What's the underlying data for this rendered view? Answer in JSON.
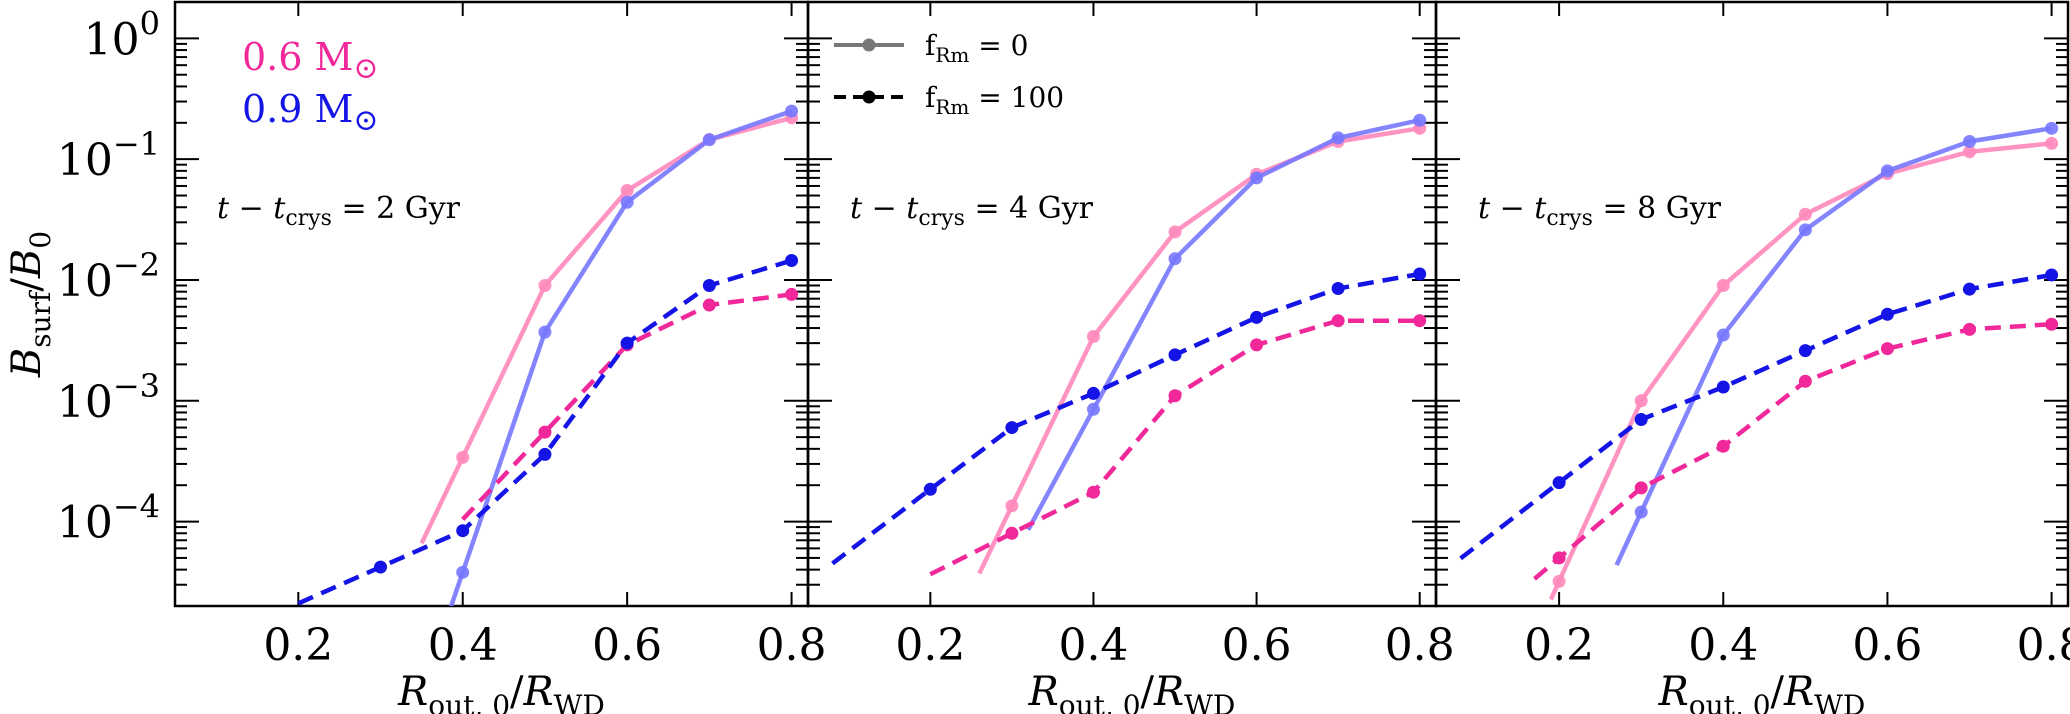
{
  "chart_data": {
    "type": "line",
    "y_scale": "log",
    "xlim": [
      0.05,
      0.82
    ],
    "ylim": [
      2e-05,
      2.0
    ],
    "xticks": [
      0.2,
      0.4,
      0.6,
      0.8
    ],
    "xtick_labels": [
      "0.2",
      "0.4",
      "0.6",
      "0.8"
    ],
    "yticks": [
      0.0001,
      0.001,
      0.01,
      0.1,
      1.0
    ],
    "ytick_labels": [
      {
        "base": "10",
        "exp": "−4"
      },
      {
        "base": "10",
        "exp": "−3"
      },
      {
        "base": "10",
        "exp": "−2"
      },
      {
        "base": "10",
        "exp": "−1"
      },
      {
        "base": "10",
        "exp": "0"
      }
    ],
    "xlabel": {
      "main": "R",
      "sub1": "out, 0",
      "slash": "/",
      "main2": "R",
      "sub2": "WD"
    },
    "ylabel": {
      "main": "B",
      "sub1": "surf",
      "slash": "/",
      "main2": "B",
      "sub2": "0"
    },
    "mass_legend": [
      {
        "label": "0.6 M",
        "symbol": "⊙",
        "color": "#f0289a"
      },
      {
        "label": "0.9 M",
        "symbol": "⊙",
        "color": "#1414e6"
      }
    ],
    "style_legend": [
      {
        "label": "f",
        "sub": "Rm",
        "eq": " = 0",
        "style": "solid"
      },
      {
        "label": "f",
        "sub": "Rm",
        "eq": " = 100",
        "style": "dashed"
      }
    ],
    "panels": [
      {
        "annotation": {
          "t": "t",
          "minus": " − ",
          "t2": "t",
          "sub": "crys",
          "rest": " = 2 Gyr"
        },
        "series": [
          {
            "name": "0.6 M⊙ fRm=0",
            "mass": 0.6,
            "fRm": 0,
            "color": "#ff88bb",
            "x": [
              0.4,
              0.5,
              0.6,
              0.7,
              0.8
            ],
            "y": [
              0.00034,
              0.009,
              0.055,
              0.145,
              0.22
            ],
            "extrap_to": 0.35
          },
          {
            "name": "0.9 M⊙ fRm=0",
            "mass": 0.9,
            "fRm": 0,
            "color": "#7777ff",
            "x": [
              0.4,
              0.5,
              0.6,
              0.7,
              0.8
            ],
            "y": [
              3.8e-05,
              0.0037,
              0.044,
              0.145,
              0.25
            ],
            "extrap_to": 0.38
          },
          {
            "name": "0.6 M⊙ fRm=100",
            "mass": 0.6,
            "fRm": 100,
            "color": "#f0289a",
            "x": [
              0.5,
              0.6,
              0.7,
              0.8
            ],
            "y": [
              0.00055,
              0.0029,
              0.0062,
              0.0076
            ],
            "extrap_to": 0.4
          },
          {
            "name": "0.9 M⊙ fRm=100",
            "mass": 0.9,
            "fRm": 100,
            "color": "#1414e6",
            "x": [
              0.3,
              0.4,
              0.5,
              0.6,
              0.7,
              0.8
            ],
            "y": [
              4.2e-05,
              8.4e-05,
              0.00036,
              0.003,
              0.009,
              0.0145
            ],
            "extrap_to": 0.2
          }
        ]
      },
      {
        "annotation": {
          "t": "t",
          "minus": " − ",
          "t2": "t",
          "sub": "crys",
          "rest": " = 4 Gyr"
        },
        "series": [
          {
            "name": "0.6 M⊙ fRm=0",
            "mass": 0.6,
            "fRm": 0,
            "color": "#ff88bb",
            "x": [
              0.3,
              0.4,
              0.5,
              0.6,
              0.7,
              0.8
            ],
            "y": [
              0.000135,
              0.0034,
              0.025,
              0.075,
              0.14,
              0.18
            ],
            "extrap_to": 0.26
          },
          {
            "name": "0.9 M⊙ fRm=0",
            "mass": 0.9,
            "fRm": 0,
            "color": "#7777ff",
            "x": [
              0.4,
              0.5,
              0.6,
              0.7,
              0.8
            ],
            "y": [
              0.00085,
              0.015,
              0.07,
              0.15,
              0.21
            ],
            "extrap_to": 0.32
          },
          {
            "name": "0.6 M⊙ fRm=100",
            "mass": 0.6,
            "fRm": 100,
            "color": "#f0289a",
            "x": [
              0.3,
              0.4,
              0.5,
              0.6,
              0.7,
              0.8
            ],
            "y": [
              8e-05,
              0.000175,
              0.0011,
              0.0029,
              0.0046,
              0.0046
            ],
            "extrap_to": 0.2
          },
          {
            "name": "0.9 M⊙ fRm=100",
            "mass": 0.9,
            "fRm": 100,
            "color": "#1414e6",
            "x": [
              0.2,
              0.3,
              0.4,
              0.5,
              0.6,
              0.7,
              0.8
            ],
            "y": [
              0.000185,
              0.0006,
              0.00115,
              0.0024,
              0.0049,
              0.0085,
              0.0112
            ],
            "extrap_to": 0.08
          }
        ]
      },
      {
        "annotation": {
          "t": "t",
          "minus": " − ",
          "t2": "t",
          "sub": "crys",
          "rest": " = 8 Gyr"
        },
        "series": [
          {
            "name": "0.6 M⊙ fRm=0",
            "mass": 0.6,
            "fRm": 0,
            "color": "#ff88bb",
            "x": [
              0.2,
              0.3,
              0.4,
              0.5,
              0.6,
              0.7,
              0.8
            ],
            "y": [
              3.2e-05,
              0.001,
              0.009,
              0.035,
              0.076,
              0.115,
              0.135
            ],
            "extrap_to": 0.19
          },
          {
            "name": "0.9 M⊙ fRm=0",
            "mass": 0.9,
            "fRm": 0,
            "color": "#7777ff",
            "x": [
              0.3,
              0.4,
              0.5,
              0.6,
              0.7,
              0.8
            ],
            "y": [
              0.00012,
              0.0035,
              0.026,
              0.08,
              0.14,
              0.18
            ],
            "extrap_to": 0.27
          },
          {
            "name": "0.6 M⊙ fRm=100",
            "mass": 0.6,
            "fRm": 100,
            "color": "#f0289a",
            "x": [
              0.2,
              0.3,
              0.4,
              0.5,
              0.6,
              0.7,
              0.8
            ],
            "y": [
              5e-05,
              0.00019,
              0.00042,
              0.00145,
              0.0027,
              0.0039,
              0.0043
            ],
            "extrap_to": 0.17
          },
          {
            "name": "0.9 M⊙ fRm=100",
            "mass": 0.9,
            "fRm": 100,
            "color": "#1414e6",
            "x": [
              0.2,
              0.3,
              0.4,
              0.5,
              0.6,
              0.7,
              0.8
            ],
            "y": [
              0.00021,
              0.0007,
              0.0013,
              0.0026,
              0.0052,
              0.0084,
              0.011
            ],
            "extrap_to": 0.08
          }
        ]
      }
    ]
  }
}
